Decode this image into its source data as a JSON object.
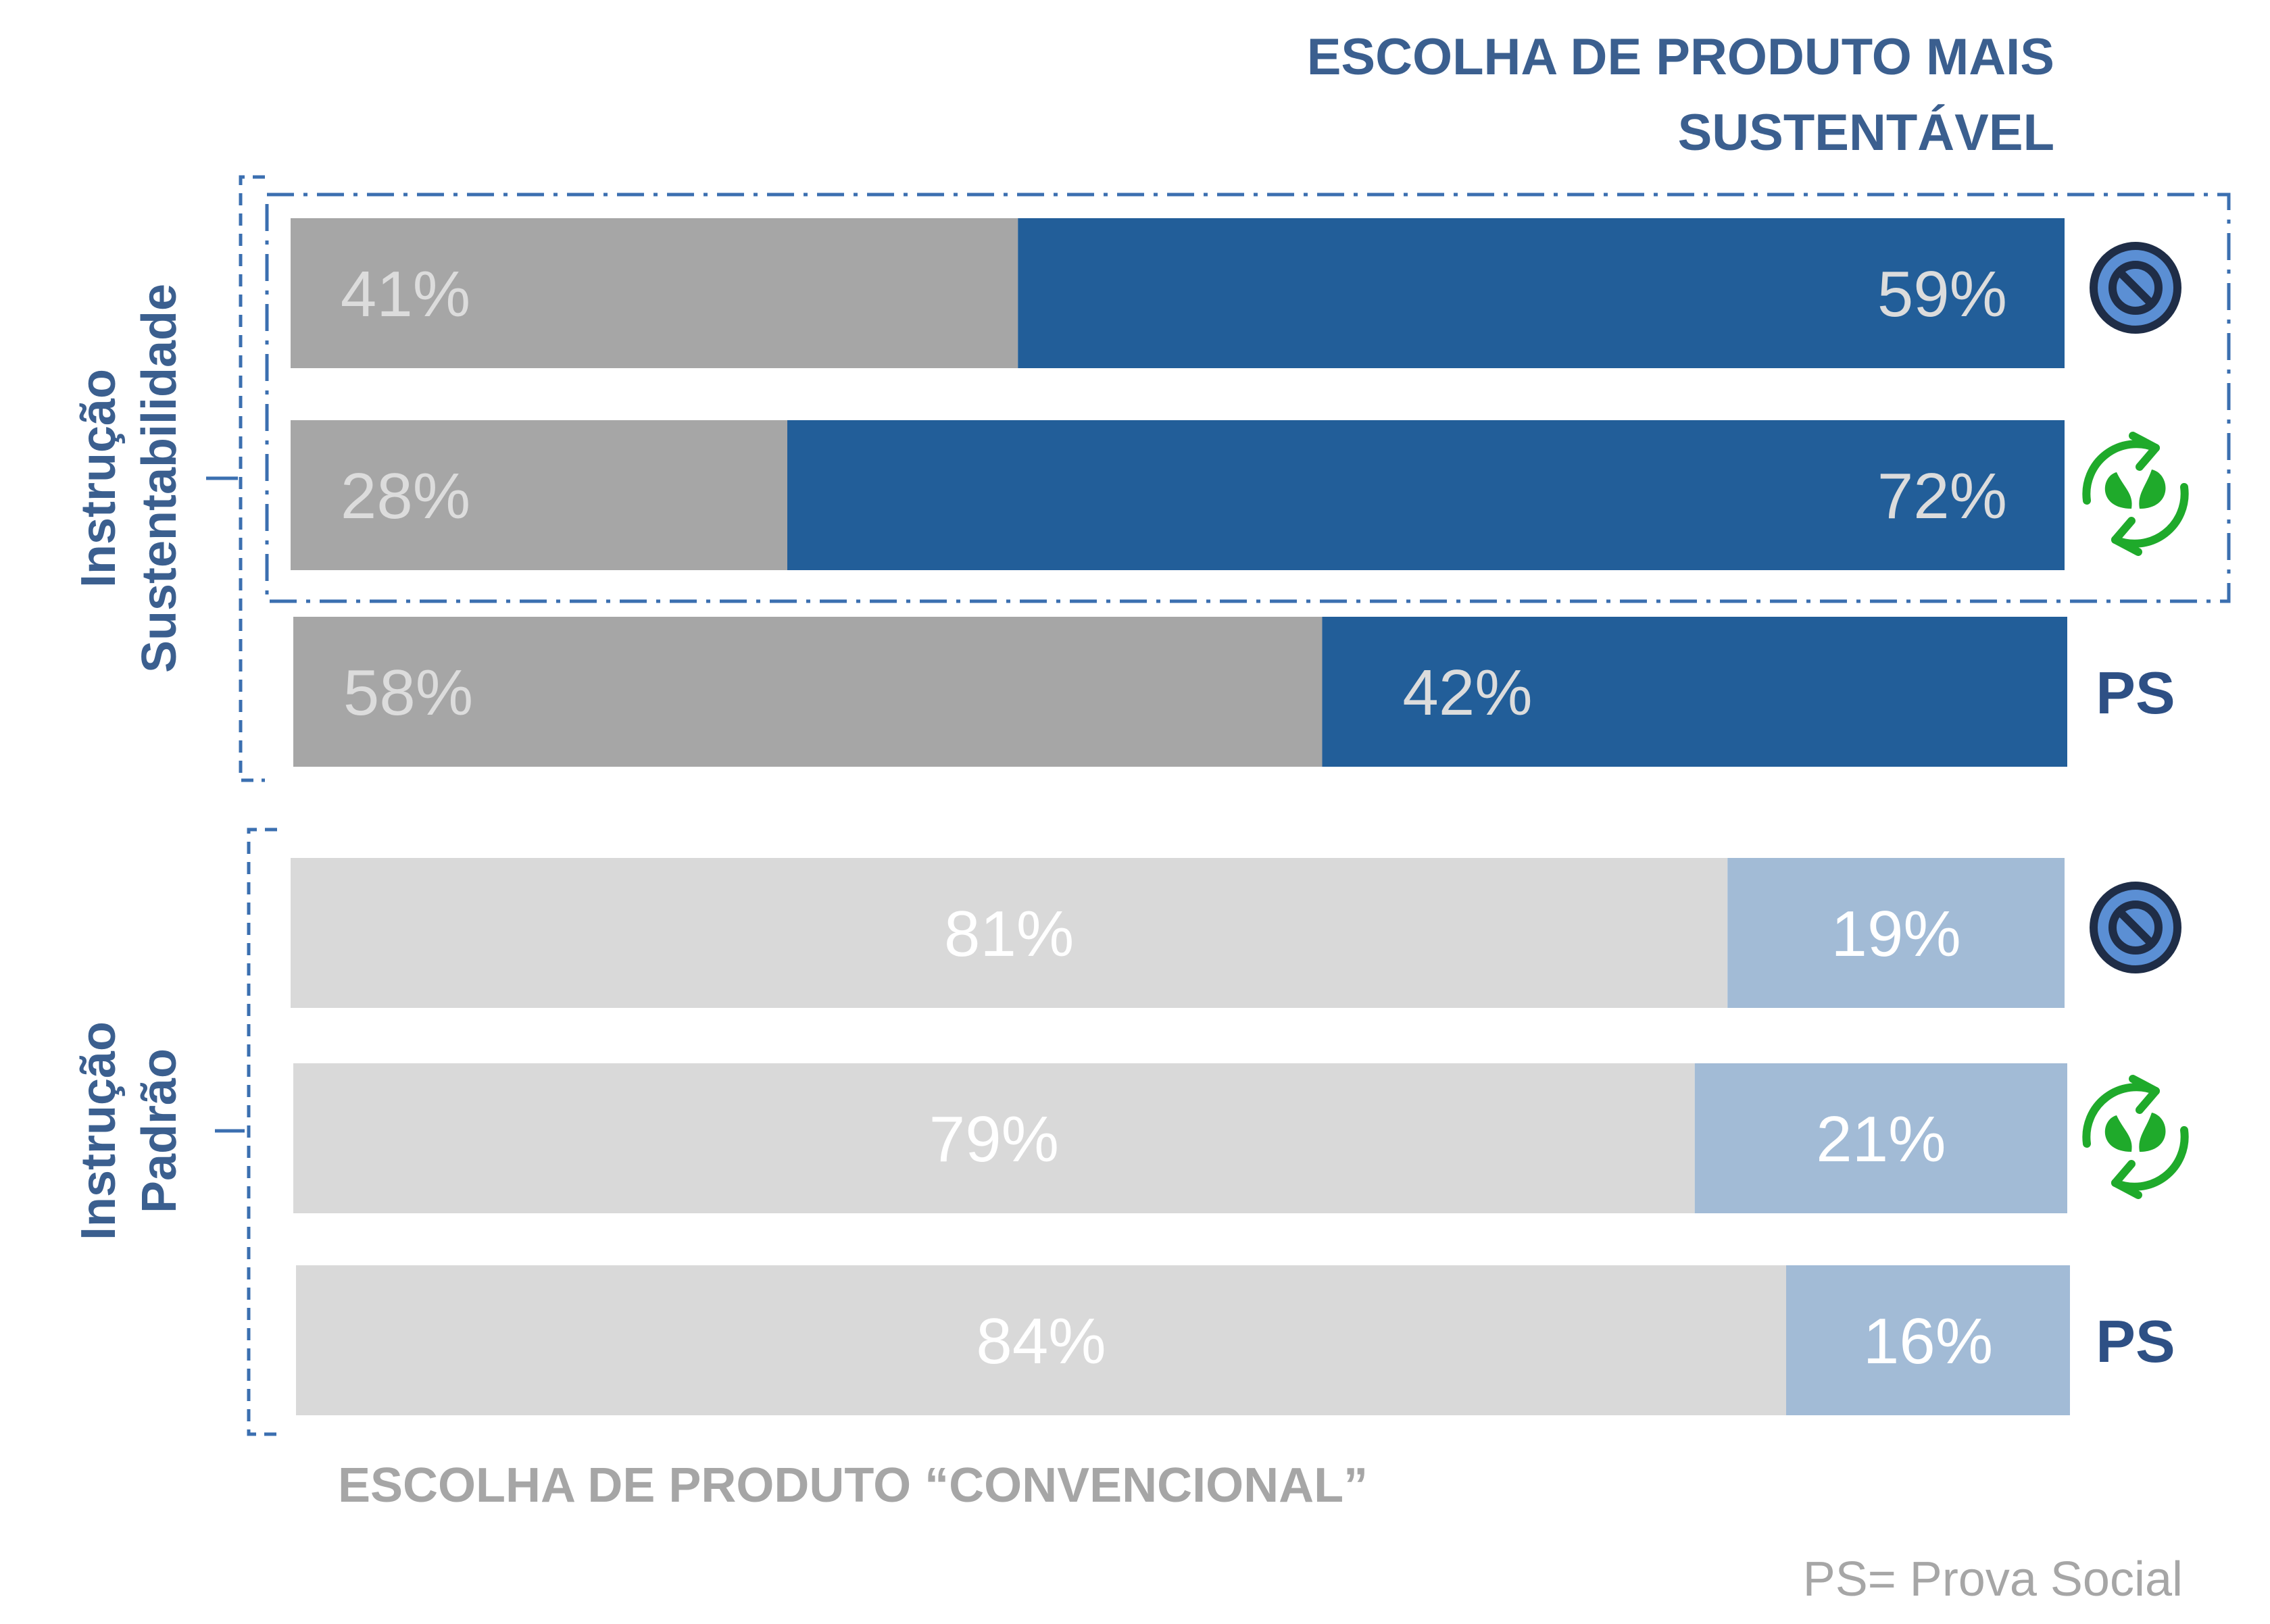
{
  "chart_data": {
    "type": "bar",
    "orientation": "horizontal",
    "stacked": true,
    "title": "ESCOLHA DE PRODUTO MAIS SUSTENTÁVEL",
    "title_lines": [
      "ESCOLHA DE PRODUTO MAIS",
      "SUSTENTÁVEL"
    ],
    "bottom_label": "ESCOLHA DE PRODUTO “CONVENCIONAL”",
    "footnote": "PS= Prova Social",
    "groups": [
      {
        "label_lines": [
          "Instrução",
          "Sustentabilidade"
        ],
        "rows": [
          {
            "marker": "no-sign-icon",
            "convencional": 41,
            "sustentavel": 59,
            "convencional_label": "41%",
            "sustentavel_label": "59%"
          },
          {
            "marker": "recycle-leaf-icon",
            "convencional": 28,
            "sustentavel": 72,
            "convencional_label": "28%",
            "sustentavel_label": "72%"
          },
          {
            "marker": "text",
            "marker_text": "PS",
            "convencional": 58,
            "sustentavel": 42,
            "convencional_label": "58%",
            "sustentavel_label": "42%"
          }
        ],
        "colors": {
          "convencional": "#a6a6a6",
          "sustentavel": "#225e99",
          "convencional_text": "#dcdcdc",
          "sustentavel_text": "#dcdcdc"
        }
      },
      {
        "label_lines": [
          "Instrução",
          "Padrão"
        ],
        "rows": [
          {
            "marker": "no-sign-icon",
            "convencional": 81,
            "sustentavel": 19,
            "convencional_label": "81%",
            "sustentavel_label": "19%"
          },
          {
            "marker": "recycle-leaf-icon",
            "convencional": 79,
            "sustentavel": 21,
            "convencional_label": "79%",
            "sustentavel_label": "21%"
          },
          {
            "marker": "text",
            "marker_text": "PS",
            "convencional": 84,
            "sustentavel": 16,
            "convencional_label": "84%",
            "sustentavel_label": "16%"
          }
        ],
        "colors": {
          "convencional": "#d9d9d9",
          "sustentavel": "#a2bbd6",
          "convencional_text": "#ffffff",
          "sustentavel_text": "#ffffff"
        }
      }
    ],
    "xlim": [
      0,
      100
    ],
    "highlight": "dash-dot box around the first two rows of the first group",
    "colors": {
      "accent": "#3b5f8f",
      "ps_text": "#2e5085",
      "no_sign_fill": "#5b8fd4",
      "no_sign_stroke": "#1f2d47",
      "recycle": "#1faa2b"
    }
  }
}
